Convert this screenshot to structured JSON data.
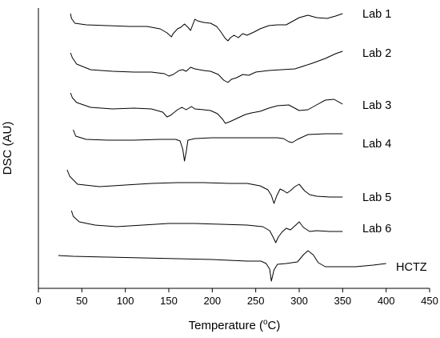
{
  "chart_data": {
    "type": "line",
    "xlabel": "Temperature (",
    "xlabel_sup": "o",
    "xlabel_unit": "C)",
    "ylabel": "DSC (AU)",
    "xlim": [
      0,
      450
    ],
    "x_ticks": [
      "0",
      "50",
      "100",
      "150",
      "200",
      "250",
      "300",
      "350",
      "400",
      "450"
    ],
    "y_ticks": "none",
    "series": [
      {
        "name": "Lab 1",
        "points": [
          [
            37,
            17
          ],
          [
            38,
            23
          ],
          [
            42,
            29
          ],
          [
            55,
            31
          ],
          [
            80,
            32
          ],
          [
            105,
            33
          ],
          [
            125,
            33
          ],
          [
            140,
            36
          ],
          [
            148,
            41
          ],
          [
            153,
            46
          ],
          [
            155,
            42
          ],
          [
            160,
            36
          ],
          [
            164,
            34
          ],
          [
            168,
            30
          ],
          [
            172,
            34
          ],
          [
            175,
            38
          ],
          [
            180,
            24
          ],
          [
            183,
            26
          ],
          [
            190,
            28
          ],
          [
            198,
            29
          ],
          [
            205,
            33
          ],
          [
            210,
            40
          ],
          [
            215,
            48
          ],
          [
            218,
            51
          ],
          [
            221,
            47
          ],
          [
            225,
            44
          ],
          [
            230,
            47
          ],
          [
            235,
            42
          ],
          [
            240,
            44
          ],
          [
            248,
            40
          ],
          [
            255,
            36
          ],
          [
            265,
            32
          ],
          [
            275,
            31
          ],
          [
            285,
            31
          ],
          [
            300,
            22
          ],
          [
            310,
            19
          ],
          [
            320,
            22
          ],
          [
            332,
            23
          ],
          [
            342,
            20
          ],
          [
            350,
            17
          ]
        ]
      },
      {
        "name": "Lab 2",
        "points": [
          [
            37,
            66
          ],
          [
            39,
            72
          ],
          [
            44,
            80
          ],
          [
            60,
            87
          ],
          [
            85,
            89
          ],
          [
            110,
            90
          ],
          [
            130,
            90
          ],
          [
            145,
            92
          ],
          [
            150,
            95
          ],
          [
            155,
            93
          ],
          [
            162,
            88
          ],
          [
            166,
            87
          ],
          [
            170,
            89
          ],
          [
            175,
            84
          ],
          [
            180,
            86
          ],
          [
            190,
            88
          ],
          [
            198,
            89
          ],
          [
            207,
            93
          ],
          [
            213,
            100
          ],
          [
            218,
            103
          ],
          [
            222,
            99
          ],
          [
            228,
            97
          ],
          [
            235,
            93
          ],
          [
            242,
            94
          ],
          [
            250,
            90
          ],
          [
            265,
            88
          ],
          [
            280,
            87
          ],
          [
            295,
            86
          ],
          [
            315,
            79
          ],
          [
            330,
            73
          ],
          [
            342,
            67
          ],
          [
            350,
            64
          ]
        ]
      },
      {
        "name": "Lab 3",
        "points": [
          [
            37,
            116
          ],
          [
            39,
            122
          ],
          [
            44,
            128
          ],
          [
            60,
            134
          ],
          [
            85,
            136
          ],
          [
            110,
            135
          ],
          [
            130,
            136
          ],
          [
            143,
            140
          ],
          [
            148,
            146
          ],
          [
            152,
            144
          ],
          [
            160,
            137
          ],
          [
            165,
            134
          ],
          [
            170,
            137
          ],
          [
            176,
            133
          ],
          [
            180,
            136
          ],
          [
            190,
            137
          ],
          [
            198,
            138
          ],
          [
            206,
            142
          ],
          [
            212,
            149
          ],
          [
            215,
            154
          ],
          [
            220,
            152
          ],
          [
            226,
            149
          ],
          [
            232,
            146
          ],
          [
            238,
            143
          ],
          [
            245,
            141
          ],
          [
            255,
            139
          ],
          [
            265,
            135
          ],
          [
            275,
            132
          ],
          [
            288,
            131
          ],
          [
            300,
            138
          ],
          [
            310,
            137
          ],
          [
            320,
            131
          ],
          [
            330,
            125
          ],
          [
            340,
            124
          ],
          [
            350,
            130
          ]
        ]
      },
      {
        "name": "Lab 4",
        "points": [
          [
            40,
            162
          ],
          [
            43,
            170
          ],
          [
            55,
            174
          ],
          [
            80,
            175
          ],
          [
            110,
            175
          ],
          [
            140,
            174
          ],
          [
            158,
            174
          ],
          [
            163,
            176
          ],
          [
            166,
            186
          ],
          [
            168,
            201
          ],
          [
            170,
            190
          ],
          [
            172,
            175
          ],
          [
            180,
            173
          ],
          [
            200,
            172
          ],
          [
            230,
            172
          ],
          [
            260,
            172
          ],
          [
            275,
            172
          ],
          [
            282,
            173
          ],
          [
            288,
            177
          ],
          [
            292,
            178
          ],
          [
            298,
            174
          ],
          [
            310,
            168
          ],
          [
            330,
            167
          ],
          [
            350,
            167
          ]
        ]
      },
      {
        "name": "Lab 5",
        "points": [
          [
            33,
            212
          ],
          [
            36,
            220
          ],
          [
            45,
            230
          ],
          [
            70,
            233
          ],
          [
            100,
            231
          ],
          [
            130,
            229
          ],
          [
            160,
            228
          ],
          [
            190,
            228
          ],
          [
            220,
            229
          ],
          [
            240,
            229
          ],
          [
            255,
            232
          ],
          [
            264,
            237
          ],
          [
            268,
            244
          ],
          [
            271,
            254
          ],
          [
            274,
            245
          ],
          [
            278,
            236
          ],
          [
            282,
            238
          ],
          [
            286,
            241
          ],
          [
            290,
            238
          ],
          [
            295,
            233
          ],
          [
            300,
            230
          ],
          [
            306,
            238
          ],
          [
            312,
            243
          ],
          [
            320,
            245
          ],
          [
            335,
            246
          ],
          [
            350,
            246
          ]
        ]
      },
      {
        "name": "Lab 6",
        "points": [
          [
            38,
            263
          ],
          [
            40,
            270
          ],
          [
            47,
            277
          ],
          [
            65,
            281
          ],
          [
            90,
            283
          ],
          [
            120,
            281
          ],
          [
            150,
            279
          ],
          [
            180,
            279
          ],
          [
            210,
            280
          ],
          [
            240,
            281
          ],
          [
            258,
            283
          ],
          [
            266,
            288
          ],
          [
            270,
            296
          ],
          [
            273,
            303
          ],
          [
            276,
            296
          ],
          [
            280,
            290
          ],
          [
            285,
            285
          ],
          [
            290,
            287
          ],
          [
            296,
            281
          ],
          [
            300,
            277
          ],
          [
            305,
            284
          ],
          [
            312,
            289
          ],
          [
            320,
            288
          ],
          [
            335,
            289
          ],
          [
            350,
            289
          ]
        ]
      },
      {
        "name": "HCTZ",
        "points": [
          [
            23,
            319
          ],
          [
            40,
            320
          ],
          [
            80,
            321
          ],
          [
            120,
            322
          ],
          [
            160,
            323
          ],
          [
            200,
            324
          ],
          [
            240,
            326
          ],
          [
            256,
            326
          ],
          [
            262,
            329
          ],
          [
            266,
            336
          ],
          [
            268,
            351
          ],
          [
            271,
            337
          ],
          [
            275,
            330
          ],
          [
            285,
            329
          ],
          [
            298,
            327
          ],
          [
            305,
            318
          ],
          [
            310,
            313
          ],
          [
            316,
            318
          ],
          [
            322,
            328
          ],
          [
            330,
            333
          ],
          [
            345,
            333
          ],
          [
            365,
            333
          ],
          [
            385,
            331
          ],
          [
            400,
            329
          ]
        ]
      }
    ]
  }
}
